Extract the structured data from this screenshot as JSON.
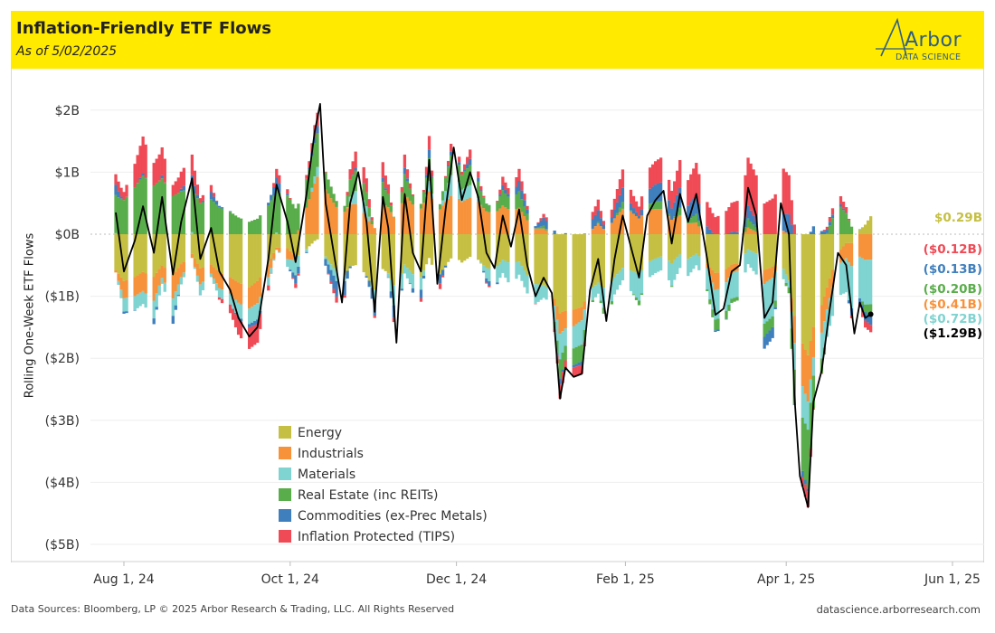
{
  "header": {
    "title": "Inflation-Friendly ETF Flows",
    "subtitle": "As of 5/02/2025",
    "logo_name": "Arbor",
    "logo_sub": "DATA SCIENCE"
  },
  "footer": {
    "sources": "Data Sources: Bloomberg, LP © 2025 Arbor Research & Trading, LLC. All Rights Reserved",
    "site": "datascience.arborresearch.com"
  },
  "colors": {
    "Energy": "#c5c043",
    "Industrials": "#f7923b",
    "Materials": "#7fd3d0",
    "Real Estate": "#59ad4b",
    "Commodities": "#3f7fbd",
    "Inflation Protected": "#ef4a55",
    "Total": "#000000"
  },
  "chart_data": {
    "type": "bar",
    "stacked": true,
    "ylabel": "Rolling One-Week ETF Flows",
    "ylim": [
      -5.3,
      2.5
    ],
    "y_ticks": [
      {
        "value": 2,
        "label": "$2B"
      },
      {
        "value": 1,
        "label": "$1B"
      },
      {
        "value": 0,
        "label": "$0B"
      },
      {
        "value": -1,
        "label": "($1B)"
      },
      {
        "value": -2,
        "label": "($2B)"
      },
      {
        "value": -3,
        "label": "($3B)"
      },
      {
        "value": -4,
        "label": "($4B)"
      },
      {
        "value": -5,
        "label": "($5B)"
      }
    ],
    "x_ticks": [
      "Aug 1, 24",
      "Oct 1, 24",
      "Dec 1, 24",
      "Feb 1, 25",
      "Apr 1, 25",
      "Jun 1, 25"
    ],
    "grid": true,
    "legend_position": "bottom-left",
    "legend": [
      "Energy",
      "Industrials",
      "Materials",
      "Real Estate (inc REITs)",
      "Commodities (ex-Prec Metals)",
      "Inflation Protected (TIPS)"
    ],
    "end_labels": [
      {
        "series": "Energy",
        "label": "$0.29B",
        "value": 0.29
      },
      {
        "series": "Inflation Protected",
        "label": "($0.12B)",
        "value": -0.12
      },
      {
        "series": "Commodities",
        "label": "($0.13B)",
        "value": -0.13
      },
      {
        "series": "Real Estate",
        "label": "($0.20B)",
        "value": -0.2
      },
      {
        "series": "Industrials",
        "label": "($0.41B)",
        "value": -0.41
      },
      {
        "series": "Materials",
        "label": "($0.72B)",
        "value": -0.72
      },
      {
        "series": "Total",
        "label": "($1.29B)",
        "value": -1.29
      }
    ],
    "total_line": [
      {
        "x": "2024-07-29",
        "y": 0.35
      },
      {
        "x": "2024-08-01",
        "y": -0.6
      },
      {
        "x": "2024-08-05",
        "y": -0.1
      },
      {
        "x": "2024-08-08",
        "y": 0.45
      },
      {
        "x": "2024-08-12",
        "y": -0.3
      },
      {
        "x": "2024-08-15",
        "y": 0.6
      },
      {
        "x": "2024-08-19",
        "y": -0.65
      },
      {
        "x": "2024-08-22",
        "y": 0.2
      },
      {
        "x": "2024-08-26",
        "y": 0.9
      },
      {
        "x": "2024-08-29",
        "y": -0.4
      },
      {
        "x": "2024-09-02",
        "y": 0.1
      },
      {
        "x": "2024-09-05",
        "y": -0.6
      },
      {
        "x": "2024-09-09",
        "y": -0.9
      },
      {
        "x": "2024-09-12",
        "y": -1.35
      },
      {
        "x": "2024-09-16",
        "y": -1.65
      },
      {
        "x": "2024-09-19",
        "y": -1.5
      },
      {
        "x": "2024-09-23",
        "y": -0.4
      },
      {
        "x": "2024-09-26",
        "y": 0.8
      },
      {
        "x": "2024-09-30",
        "y": 0.2
      },
      {
        "x": "2024-10-03",
        "y": -0.45
      },
      {
        "x": "2024-10-07",
        "y": 0.65
      },
      {
        "x": "2024-10-10",
        "y": 1.65
      },
      {
        "x": "2024-10-12",
        "y": 2.1
      },
      {
        "x": "2024-10-14",
        "y": 0.5
      },
      {
        "x": "2024-10-17",
        "y": -0.3
      },
      {
        "x": "2024-10-20",
        "y": -1.1
      },
      {
        "x": "2024-10-23",
        "y": 0.5
      },
      {
        "x": "2024-10-26",
        "y": 1.0
      },
      {
        "x": "2024-10-29",
        "y": 0.2
      },
      {
        "x": "2024-11-01",
        "y": -1.25
      },
      {
        "x": "2024-11-04",
        "y": 0.6
      },
      {
        "x": "2024-11-06",
        "y": 0.1
      },
      {
        "x": "2024-11-09",
        "y": -1.75
      },
      {
        "x": "2024-11-12",
        "y": 0.65
      },
      {
        "x": "2024-11-15",
        "y": -0.3
      },
      {
        "x": "2024-11-18",
        "y": -0.6
      },
      {
        "x": "2024-11-21",
        "y": 1.2
      },
      {
        "x": "2024-11-24",
        "y": -0.8
      },
      {
        "x": "2024-11-27",
        "y": 0.4
      },
      {
        "x": "2024-11-30",
        "y": 1.4
      },
      {
        "x": "2024-12-03",
        "y": 0.55
      },
      {
        "x": "2024-12-06",
        "y": 1.0
      },
      {
        "x": "2024-12-09",
        "y": 0.6
      },
      {
        "x": "2024-12-12",
        "y": -0.3
      },
      {
        "x": "2024-12-15",
        "y": -0.55
      },
      {
        "x": "2024-12-18",
        "y": 0.3
      },
      {
        "x": "2024-12-21",
        "y": -0.2
      },
      {
        "x": "2024-12-24",
        "y": 0.4
      },
      {
        "x": "2024-12-27",
        "y": -0.5
      },
      {
        "x": "2024-12-30",
        "y": -1.0
      },
      {
        "x": "2025-01-02",
        "y": -0.7
      },
      {
        "x": "2025-01-05",
        "y": -0.95
      },
      {
        "x": "2025-01-08",
        "y": -2.65
      },
      {
        "x": "2025-01-10",
        "y": -2.15
      },
      {
        "x": "2025-01-13",
        "y": -2.3
      },
      {
        "x": "2025-01-16",
        "y": -2.25
      },
      {
        "x": "2025-01-19",
        "y": -0.9
      },
      {
        "x": "2025-01-22",
        "y": -0.4
      },
      {
        "x": "2025-01-25",
        "y": -1.4
      },
      {
        "x": "2025-01-28",
        "y": -0.4
      },
      {
        "x": "2025-01-31",
        "y": 0.3
      },
      {
        "x": "2025-02-03",
        "y": -0.2
      },
      {
        "x": "2025-02-06",
        "y": -0.7
      },
      {
        "x": "2025-02-09",
        "y": 0.3
      },
      {
        "x": "2025-02-12",
        "y": 0.55
      },
      {
        "x": "2025-02-15",
        "y": 0.7
      },
      {
        "x": "2025-02-18",
        "y": -0.15
      },
      {
        "x": "2025-02-21",
        "y": 0.65
      },
      {
        "x": "2025-02-24",
        "y": 0.2
      },
      {
        "x": "2025-02-27",
        "y": 0.65
      },
      {
        "x": "2025-03-03",
        "y": -0.4
      },
      {
        "x": "2025-03-06",
        "y": -1.3
      },
      {
        "x": "2025-03-09",
        "y": -1.2
      },
      {
        "x": "2025-03-12",
        "y": -0.6
      },
      {
        "x": "2025-03-15",
        "y": -0.5
      },
      {
        "x": "2025-03-18",
        "y": 0.75
      },
      {
        "x": "2025-03-21",
        "y": 0.3
      },
      {
        "x": "2025-03-24",
        "y": -1.35
      },
      {
        "x": "2025-03-27",
        "y": -1.1
      },
      {
        "x": "2025-03-30",
        "y": 0.5
      },
      {
        "x": "2025-04-02",
        "y": 0.0
      },
      {
        "x": "2025-04-04",
        "y": -2.6
      },
      {
        "x": "2025-04-06",
        "y": -3.9
      },
      {
        "x": "2025-04-09",
        "y": -4.4
      },
      {
        "x": "2025-04-11",
        "y": -2.7
      },
      {
        "x": "2025-04-14",
        "y": -2.2
      },
      {
        "x": "2025-04-17",
        "y": -1.2
      },
      {
        "x": "2025-04-20",
        "y": -0.3
      },
      {
        "x": "2025-04-23",
        "y": -0.5
      },
      {
        "x": "2025-04-26",
        "y": -1.6
      },
      {
        "x": "2025-04-28",
        "y": -1.1
      },
      {
        "x": "2025-04-30",
        "y": -1.35
      },
      {
        "x": "2025-05-02",
        "y": -1.29
      }
    ],
    "stack_anchors": [
      {
        "x": "2024-07-29",
        "Energy": -0.75,
        "Industrials": -0.2,
        "Materials": -0.15,
        "Real Estate": 0.45,
        "Commodities": 0.0,
        "Inflation Protected": 0.0
      },
      {
        "x": "2024-08-08",
        "Energy": -0.6,
        "Industrials": -0.3,
        "Materials": -0.2,
        "Real Estate": 0.95,
        "Commodities": 0.05,
        "Inflation Protected": 0.6
      },
      {
        "x": "2024-08-15",
        "Energy": -0.5,
        "Industrials": -0.2,
        "Materials": -0.1,
        "Real Estate": 0.9,
        "Commodities": 0.05,
        "Inflation Protected": 0.45
      },
      {
        "x": "2024-08-26",
        "Energy": -0.45,
        "Industrials": -0.2,
        "Materials": -0.1,
        "Real Estate": 0.6,
        "Commodities": 0.05,
        "Inflation Protected": 0.2
      },
      {
        "x": "2024-09-16",
        "Energy": -0.8,
        "Industrials": -0.3,
        "Materials": -0.2,
        "Real Estate": 0.25,
        "Commodities": 0.0,
        "Inflation Protected": -0.3
      },
      {
        "x": "2024-09-30",
        "Energy": -0.2,
        "Industrials": -0.15,
        "Materials": -0.1,
        "Real Estate": 0.65,
        "Commodities": 0.05,
        "Inflation Protected": 0.1
      },
      {
        "x": "2024-10-12",
        "Energy": -0.1,
        "Industrials": 1.0,
        "Materials": 0.15,
        "Real Estate": 0.5,
        "Commodities": 0.1,
        "Inflation Protected": 0.2
      },
      {
        "x": "2024-10-29",
        "Energy": -0.6,
        "Industrials": 0.35,
        "Materials": 0.25,
        "Real Estate": 0.3,
        "Commodities": 0.05,
        "Inflation Protected": 0.3
      },
      {
        "x": "2024-11-12",
        "Energy": -0.55,
        "Industrials": 0.6,
        "Materials": -0.2,
        "Real Estate": 0.25,
        "Commodities": 0.05,
        "Inflation Protected": 0.15
      },
      {
        "x": "2024-11-30",
        "Energy": -0.4,
        "Industrials": 0.6,
        "Materials": 0.35,
        "Real Estate": 0.3,
        "Commodities": 0.05,
        "Inflation Protected": 0.1
      },
      {
        "x": "2024-12-21",
        "Energy": -0.45,
        "Industrials": 0.4,
        "Materials": -0.35,
        "Real Estate": 0.2,
        "Commodities": 0.05,
        "Inflation Protected": 0.1
      },
      {
        "x": "2025-01-10",
        "Energy": -1.3,
        "Industrials": -0.35,
        "Materials": -0.35,
        "Real Estate": -0.3,
        "Commodities": -0.05,
        "Inflation Protected": -0.2
      },
      {
        "x": "2025-02-03",
        "Energy": -0.5,
        "Industrials": 0.45,
        "Materials": -0.25,
        "Real Estate": 0.1,
        "Commodities": 0.2,
        "Inflation Protected": 0.3
      },
      {
        "x": "2025-02-18",
        "Energy": -0.35,
        "Industrials": 0.35,
        "Materials": -0.25,
        "Real Estate": 0.1,
        "Commodities": 0.3,
        "Inflation Protected": 0.4
      },
      {
        "x": "2025-03-06",
        "Energy": -0.55,
        "Industrials": -0.2,
        "Materials": -0.4,
        "Real Estate": -0.1,
        "Commodities": 0.05,
        "Inflation Protected": 0.35
      },
      {
        "x": "2025-03-27",
        "Energy": -0.3,
        "Industrials": 0.05,
        "Materials": -0.4,
        "Real Estate": 0.05,
        "Commodities": 0.05,
        "Inflation Protected": 0.8
      },
      {
        "x": "2025-04-09",
        "Energy": -2.0,
        "Industrials": -0.8,
        "Materials": -0.5,
        "Real Estate": -1.0,
        "Commodities": -0.1,
        "Inflation Protected": -0.3
      },
      {
        "x": "2025-04-20",
        "Energy": -0.3,
        "Industrials": -0.2,
        "Materials": -0.5,
        "Real Estate": 0.5,
        "Commodities": 0.05,
        "Inflation Protected": 0.15
      },
      {
        "x": "2025-05-02",
        "Energy": 0.29,
        "Industrials": -0.41,
        "Materials": -0.72,
        "Real Estate": -0.2,
        "Commodities": -0.13,
        "Inflation Protected": -0.12
      }
    ]
  }
}
